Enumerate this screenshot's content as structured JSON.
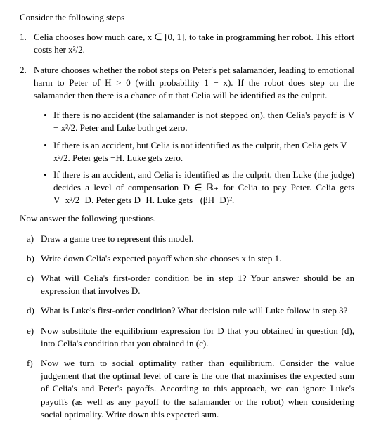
{
  "intro": "Consider the following steps",
  "steps": [
    {
      "num": "1.",
      "text": "Celia chooses how much care, x ∈ [0, 1], to take in programming her robot. This effort costs her x²/2."
    },
    {
      "num": "2.",
      "text": "Nature chooses whether the robot steps on Peter's pet salamander, leading to emotional harm to Peter of H > 0 (with probability 1 − x). If the robot does step on the salamander then there is a chance of π that Celia will be identified as the culprit."
    }
  ],
  "bullets": [
    "If there is no accident (the salamander is not stepped on), then Celia's payoff is V − x²/2. Peter and Luke both get zero.",
    "If there is an accident, but Celia is not identified as the culprit, then Celia gets V − x²/2. Peter gets −H. Luke gets zero.",
    "If there is an accident, and Celia is identified as the culprit, then Luke (the judge) decides a level of compensation D ∈ ℝ₊ for Celia to pay Peter. Celia gets V−x²/2−D. Peter gets D−H. Luke gets −(βH−D)²."
  ],
  "section2": "Now answer the following questions.",
  "questions": [
    {
      "letter": "a)",
      "text": "Draw a game tree to represent this model."
    },
    {
      "letter": "b)",
      "text": "Write down Celia's expected payoff when she chooses x in step 1."
    },
    {
      "letter": "c)",
      "text": "What will Celia's first-order condition be in step 1? Your answer should be an expression that involves D."
    },
    {
      "letter": "d)",
      "text": "What is Luke's first-order condition? What decision rule will Luke follow in step 3?"
    },
    {
      "letter": "e)",
      "text": "Now substitute the equilibrium expression for D that you obtained in question (d), into Celia's condition that you obtained in (c)."
    },
    {
      "letter": "f)",
      "text": "Now we turn to social optimality rather than equilibrium. Consider the value judgement that the optimal level of care is the one that maximises the expected sum of Celia's and Peter's payoffs. According to this approach, we can ignore Luke's payoffs (as well as any payoff to the salamander or the robot) when considering social optimality. Write down this expected sum."
    }
  ]
}
